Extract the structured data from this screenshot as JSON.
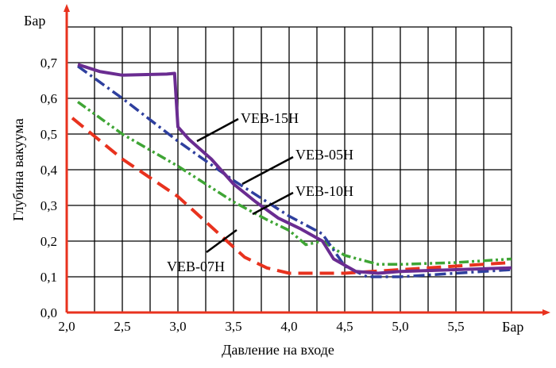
{
  "chart_data": {
    "type": "line",
    "title": "",
    "xlabel": "Давление на входе",
    "ylabel": "Глубина вакуума",
    "x_unit": "Бар",
    "y_unit": "Бар",
    "xlim": [
      2.0,
      6.0
    ],
    "ylim": [
      0.0,
      0.8
    ],
    "x_ticks": [
      {
        "value": 2.0,
        "label": "2,0"
      },
      {
        "value": 2.5,
        "label": "2,5"
      },
      {
        "value": 3.0,
        "label": "3,0"
      },
      {
        "value": 3.5,
        "label": "3,5"
      },
      {
        "value": 4.0,
        "label": "4,0"
      },
      {
        "value": 4.5,
        "label": "4,5"
      },
      {
        "value": 5.0,
        "label": "5,0"
      },
      {
        "value": 5.5,
        "label": "5,5"
      }
    ],
    "y_ticks": [
      {
        "value": 0.0,
        "label": "0,0"
      },
      {
        "value": 0.1,
        "label": "0,1"
      },
      {
        "value": 0.2,
        "label": "0,2"
      },
      {
        "value": 0.3,
        "label": "0,3"
      },
      {
        "value": 0.4,
        "label": "0,4"
      },
      {
        "value": 0.5,
        "label": "0,5"
      },
      {
        "value": 0.6,
        "label": "0,6"
      },
      {
        "value": 0.7,
        "label": "0,7"
      }
    ],
    "grid": true,
    "legend": "inline labels with leader lines",
    "series": [
      {
        "name": "VEB-15H",
        "color": "#6a2c91",
        "style": "solid",
        "points": [
          [
            2.1,
            0.695
          ],
          [
            2.3,
            0.675
          ],
          [
            2.5,
            0.665
          ],
          [
            2.9,
            0.668
          ],
          [
            2.97,
            0.67
          ],
          [
            3.0,
            0.52
          ],
          [
            3.1,
            0.485
          ],
          [
            3.3,
            0.43
          ],
          [
            3.5,
            0.36
          ],
          [
            3.7,
            0.31
          ],
          [
            3.9,
            0.265
          ],
          [
            4.1,
            0.235
          ],
          [
            4.3,
            0.2
          ],
          [
            4.4,
            0.15
          ],
          [
            4.6,
            0.115
          ],
          [
            4.8,
            0.11
          ],
          [
            5.0,
            0.115
          ],
          [
            5.5,
            0.12
          ],
          [
            6.0,
            0.125
          ]
        ]
      },
      {
        "name": "VEB-05H",
        "color": "#2e3f9e",
        "style": "dashdot",
        "points": [
          [
            2.1,
            0.69
          ],
          [
            2.5,
            0.6
          ],
          [
            3.0,
            0.48
          ],
          [
            3.5,
            0.37
          ],
          [
            3.8,
            0.31
          ],
          [
            4.0,
            0.27
          ],
          [
            4.3,
            0.22
          ],
          [
            4.5,
            0.13
          ],
          [
            4.7,
            0.1
          ],
          [
            5.0,
            0.1
          ],
          [
            5.5,
            0.11
          ],
          [
            6.0,
            0.12
          ]
        ]
      },
      {
        "name": "VEB-10H",
        "color": "#3fa535",
        "style": "dashdotdot",
        "points": [
          [
            2.1,
            0.59
          ],
          [
            2.5,
            0.5
          ],
          [
            3.0,
            0.41
          ],
          [
            3.5,
            0.31
          ],
          [
            3.8,
            0.26
          ],
          [
            4.0,
            0.23
          ],
          [
            4.15,
            0.19
          ],
          [
            4.3,
            0.2
          ],
          [
            4.5,
            0.16
          ],
          [
            4.8,
            0.135
          ],
          [
            5.0,
            0.135
          ],
          [
            5.5,
            0.14
          ],
          [
            6.0,
            0.15
          ]
        ]
      },
      {
        "name": "VEB-07H",
        "color": "#e8321e",
        "style": "dashed",
        "points": [
          [
            2.05,
            0.545
          ],
          [
            2.5,
            0.43
          ],
          [
            3.0,
            0.325
          ],
          [
            3.3,
            0.24
          ],
          [
            3.6,
            0.155
          ],
          [
            3.8,
            0.125
          ],
          [
            4.0,
            0.11
          ],
          [
            4.5,
            0.11
          ],
          [
            5.0,
            0.12
          ],
          [
            5.5,
            0.13
          ],
          [
            6.0,
            0.14
          ]
        ]
      }
    ],
    "annotations": [
      {
        "series": "VEB-15H",
        "text": "VEB-15H"
      },
      {
        "series": "VEB-05H",
        "text": "VEB-05H"
      },
      {
        "series": "VEB-10H",
        "text": "VEB-10H"
      },
      {
        "series": "VEB-07H",
        "text": "VEB-07H"
      }
    ]
  }
}
